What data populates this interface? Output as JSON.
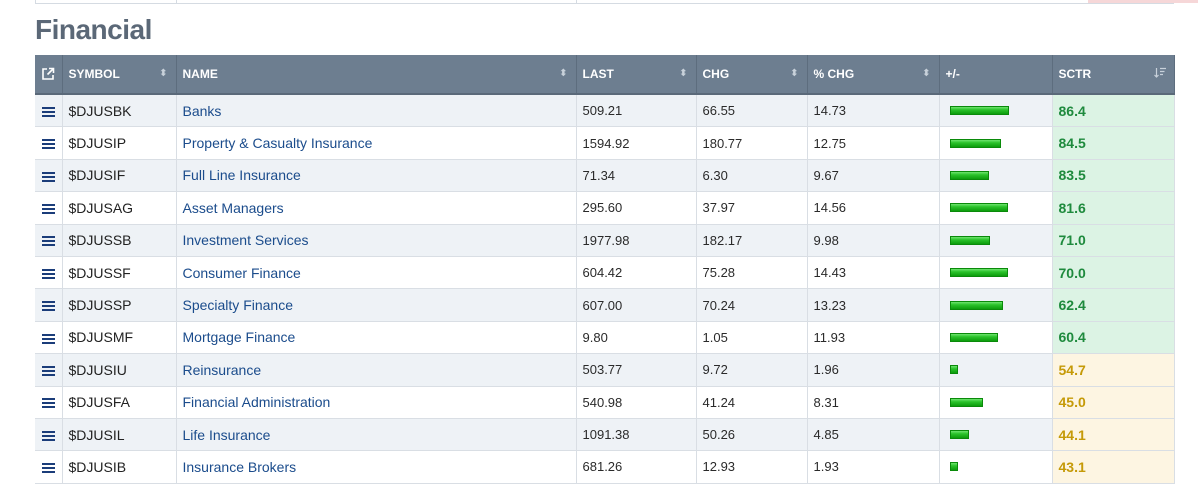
{
  "section": {
    "title": "Financial"
  },
  "columns": {
    "symbol": "SYMBOL",
    "name": "NAME",
    "last": "LAST",
    "chg": "CHG",
    "pct_chg": "% CHG",
    "plusminus": "+/-",
    "sctr": "SCTR"
  },
  "icons": {
    "open_external": "external-link-icon",
    "row_menu": "hamburger-menu-icon",
    "sort": "sort-arrows-icon",
    "sort_desc": "sort-descending-icon"
  },
  "colors": {
    "header_bg": "#6d7e90",
    "name_link": "#1b4c8c",
    "sctr_green_bg": "#dcf3e4",
    "sctr_green_text": "#1e8a3d",
    "sctr_yellow_bg": "#fdf5e2",
    "sctr_yellow_text": "#c59a08",
    "bar_green": "#2bc32b"
  },
  "rows": [
    {
      "symbol": "$DJUSBK",
      "name": "Banks",
      "last": "509.21",
      "chg": "66.55",
      "pct_chg": "14.73",
      "sctr": "86.4",
      "rating": "green"
    },
    {
      "symbol": "$DJUSIP",
      "name": "Property & Casualty Insurance",
      "last": "1594.92",
      "chg": "180.77",
      "pct_chg": "12.75",
      "sctr": "84.5",
      "rating": "green"
    },
    {
      "symbol": "$DJUSIF",
      "name": "Full Line Insurance",
      "last": "71.34",
      "chg": "6.30",
      "pct_chg": "9.67",
      "sctr": "83.5",
      "rating": "green"
    },
    {
      "symbol": "$DJUSAG",
      "name": "Asset Managers",
      "last": "295.60",
      "chg": "37.97",
      "pct_chg": "14.56",
      "sctr": "81.6",
      "rating": "green"
    },
    {
      "symbol": "$DJUSSB",
      "name": "Investment Services",
      "last": "1977.98",
      "chg": "182.17",
      "pct_chg": "9.98",
      "sctr": "71.0",
      "rating": "green"
    },
    {
      "symbol": "$DJUSSF",
      "name": "Consumer Finance",
      "last": "604.42",
      "chg": "75.28",
      "pct_chg": "14.43",
      "sctr": "70.0",
      "rating": "green"
    },
    {
      "symbol": "$DJUSSP",
      "name": "Specialty Finance",
      "last": "607.00",
      "chg": "70.24",
      "pct_chg": "13.23",
      "sctr": "62.4",
      "rating": "green"
    },
    {
      "symbol": "$DJUSMF",
      "name": "Mortgage Finance",
      "last": "9.80",
      "chg": "1.05",
      "pct_chg": "11.93",
      "sctr": "60.4",
      "rating": "green"
    },
    {
      "symbol": "$DJUSIU",
      "name": "Reinsurance",
      "last": "503.77",
      "chg": "9.72",
      "pct_chg": "1.96",
      "sctr": "54.7",
      "rating": "yellow"
    },
    {
      "symbol": "$DJUSFA",
      "name": "Financial Administration",
      "last": "540.98",
      "chg": "41.24",
      "pct_chg": "8.31",
      "sctr": "45.0",
      "rating": "yellow"
    },
    {
      "symbol": "$DJUSIL",
      "name": "Life Insurance",
      "last": "1091.38",
      "chg": "50.26",
      "pct_chg": "4.85",
      "sctr": "44.1",
      "rating": "yellow"
    },
    {
      "symbol": "$DJUSIB",
      "name": "Insurance Brokers",
      "last": "681.26",
      "chg": "12.93",
      "pct_chg": "1.93",
      "sctr": "43.1",
      "rating": "yellow"
    }
  ]
}
